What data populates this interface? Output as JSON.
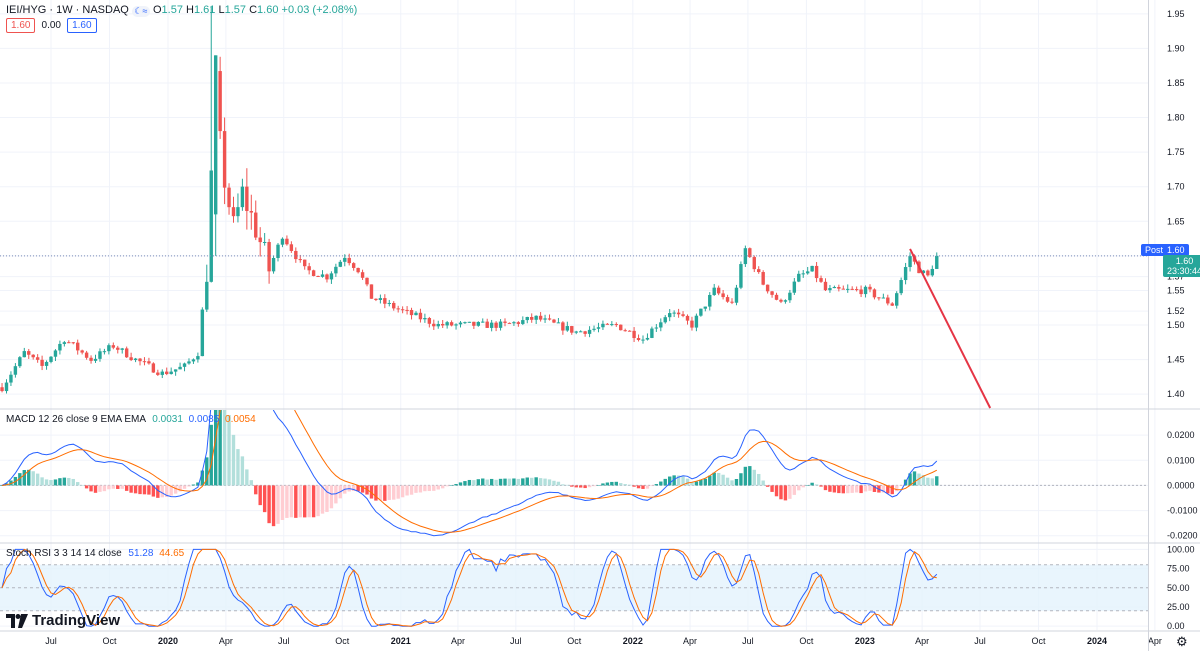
{
  "header": {
    "symbol": "IEI/HYG · 1W · NASDAQ",
    "ohlc": {
      "o_label": "O",
      "o": "1.57",
      "h_label": "H",
      "h": "1.61",
      "l_label": "L",
      "l": "1.57",
      "c_label": "C",
      "c": "1.60",
      "change": "+0.03 (+2.08%)"
    },
    "sub_values": [
      "1.60",
      "0.00",
      "1.60"
    ]
  },
  "price_labels": {
    "post_label": "Post",
    "post_value": "1.60",
    "last_value": "1.60",
    "countdown": "23:30:44"
  },
  "colors": {
    "up": "#26a69a",
    "down": "#ef5350",
    "macd_line": "#2962ff",
    "signal_line": "#ff6d00",
    "stoch_k": "#2962ff",
    "stoch_d": "#ff6d00",
    "trendline": "#e53545",
    "rsi_band": "#e3f2fd"
  },
  "chart_data": [
    {
      "type": "candlestick",
      "title": "IEI/HYG · 1W · NASDAQ",
      "y_ticks": [
        1.4,
        1.45,
        1.5,
        1.52,
        1.55,
        1.57,
        1.6,
        1.65,
        1.7,
        1.75,
        1.8,
        1.85,
        1.9,
        1.95
      ],
      "y_tick_labels": [
        "1.40",
        "1.45",
        "1.50",
        "1.52",
        "1.55",
        "1.57",
        "1.60",
        "1.65",
        "1.70",
        "1.75",
        "1.80",
        "1.85",
        "1.90",
        "1.95"
      ],
      "ylim": [
        1.38,
        1.97
      ],
      "x_labels": [
        "Jul",
        "Oct",
        "2020",
        "Apr",
        "Jul",
        "Oct",
        "2021",
        "Apr",
        "Jul",
        "Oct",
        "2022",
        "Apr",
        "Jul",
        "Oct",
        "2023",
        "Apr",
        "Jul",
        "Oct",
        "2024",
        "Apr"
      ],
      "x_label_dates": [
        "2019-07-01",
        "2019-10-01",
        "2020-01-01",
        "2020-04-01",
        "2020-07-01",
        "2020-10-01",
        "2021-01-01",
        "2021-04-01",
        "2021-07-01",
        "2021-10-01",
        "2022-01-01",
        "2022-04-01",
        "2022-07-01",
        "2022-10-01",
        "2023-01-01",
        "2023-04-01",
        "2023-07-01",
        "2023-10-01",
        "2024-01-01",
        "2024-04-01"
      ],
      "current_price": 1.6,
      "series": [
        {
          "name": "IEI/HYG weekly close (approx.)",
          "anchors": [
            [
              "2019-04-15",
              1.41
            ],
            [
              "2019-05-20",
              1.46
            ],
            [
              "2019-06-17",
              1.44
            ],
            [
              "2019-07-22",
              1.48
            ],
            [
              "2019-09-02",
              1.45
            ],
            [
              "2019-10-07",
              1.47
            ],
            [
              "2019-11-11",
              1.45
            ],
            [
              "2019-12-23",
              1.43
            ],
            [
              "2020-01-27",
              1.44
            ],
            [
              "2020-02-17",
              1.46
            ],
            [
              "2020-03-02",
              1.58
            ],
            [
              "2020-03-16",
              1.85
            ],
            [
              "2020-03-23",
              1.76
            ],
            [
              "2020-03-30",
              1.71
            ],
            [
              "2020-04-13",
              1.64
            ],
            [
              "2020-04-27",
              1.69
            ],
            [
              "2020-05-18",
              1.64
            ],
            [
              "2020-06-08",
              1.58
            ],
            [
              "2020-06-29",
              1.63
            ],
            [
              "2020-08-03",
              1.58
            ],
            [
              "2020-09-07",
              1.57
            ],
            [
              "2020-10-05",
              1.6
            ],
            [
              "2020-10-26",
              1.58
            ],
            [
              "2020-11-16",
              1.54
            ],
            [
              "2021-01-04",
              1.52
            ],
            [
              "2021-03-01",
              1.5
            ],
            [
              "2021-04-19",
              1.5
            ],
            [
              "2021-06-14",
              1.5
            ],
            [
              "2021-08-02",
              1.51
            ],
            [
              "2021-10-04",
              1.49
            ],
            [
              "2021-12-06",
              1.5
            ],
            [
              "2022-01-17",
              1.48
            ],
            [
              "2022-02-28",
              1.52
            ],
            [
              "2022-04-04",
              1.5
            ],
            [
              "2022-05-09",
              1.55
            ],
            [
              "2022-06-06",
              1.53
            ],
            [
              "2022-06-27",
              1.61
            ],
            [
              "2022-07-25",
              1.56
            ],
            [
              "2022-08-22",
              1.53
            ],
            [
              "2022-09-19",
              1.57
            ],
            [
              "2022-10-10",
              1.58
            ],
            [
              "2022-10-31",
              1.55
            ],
            [
              "2022-12-05",
              1.55
            ],
            [
              "2023-01-02",
              1.55
            ],
            [
              "2023-02-13",
              1.53
            ],
            [
              "2023-03-13",
              1.6
            ],
            [
              "2023-03-27",
              1.58
            ],
            [
              "2023-04-10",
              1.57
            ],
            [
              "2023-04-24",
              1.6
            ]
          ]
        }
      ],
      "annotations": [
        {
          "type": "trendline",
          "from": [
            "2023-03-13",
            1.61
          ],
          "to": [
            "2023-07-17",
            1.38
          ]
        },
        {
          "type": "horizontal-dotted",
          "value": 1.6
        }
      ]
    },
    {
      "type": "macd",
      "title": "MACD 12 26 close 9 EMA EMA",
      "values": {
        "histogram": "0.0031",
        "macd": "0.0085",
        "signal": "0.0054"
      },
      "y_ticks": [
        -0.02,
        -0.01,
        0.0,
        0.01,
        0.02
      ],
      "y_tick_labels": [
        "-0.0200",
        "-0.0100",
        "0.0000",
        "0.0100",
        "0.0200"
      ],
      "ylim": [
        -0.0225,
        0.03
      ]
    },
    {
      "type": "stoch_rsi",
      "title": "Stoch RSI 3 3 14 14 close",
      "values": {
        "k": "51.28",
        "d": "44.65"
      },
      "y_ticks": [
        0,
        25,
        50,
        75,
        100
      ],
      "y_tick_labels": [
        "0.00",
        "25.00",
        "50.00",
        "75.00",
        "100.00"
      ],
      "ylim": [
        -5,
        107
      ],
      "bands": [
        20,
        80
      ]
    }
  ],
  "brand": "TradingView"
}
